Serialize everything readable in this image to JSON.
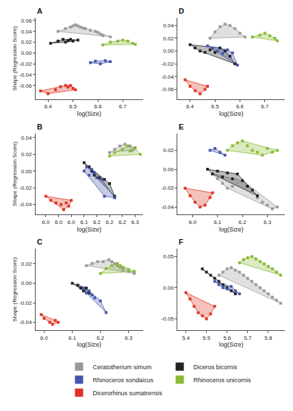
{
  "chart_data": [
    {
      "type": "scatter",
      "title": "A",
      "x_label": "log(Size)",
      "y_label": "Shape (Regression Score)",
      "grid": false,
      "xlim": [
        6.35,
        6.78
      ],
      "ylim": [
        -0.085,
        0.065
      ],
      "xticks": [
        6.4,
        6.5,
        6.6,
        6.7
      ],
      "yticks": [
        -0.06,
        -0.04,
        -0.02,
        {
          "value": 0.0,
          "label": "0.00"
        },
        0.02,
        0.04,
        0.06
      ],
      "series": [
        {
          "color": "#999999",
          "marker": "square",
          "x": [
            6.44,
            6.47,
            6.49,
            6.5,
            6.51,
            6.52,
            6.53,
            6.54,
            6.55,
            6.57,
            6.59,
            6.6,
            6.61,
            6.62,
            6.65
          ],
          "values": [
            0.04,
            0.045,
            0.048,
            0.05,
            0.052,
            0.05,
            0.048,
            0.046,
            0.045,
            0.042,
            0.04,
            0.038,
            0.035,
            0.032,
            0.03
          ]
        },
        {
          "color": "#222222",
          "marker": "square",
          "x": [
            6.41,
            6.44,
            6.46,
            6.47,
            6.48,
            6.49,
            6.5,
            6.52
          ],
          "values": [
            0.018,
            0.022,
            0.025,
            0.02,
            0.023,
            0.025,
            0.022,
            0.024
          ]
        },
        {
          "color": "#4455aa",
          "marker": "square",
          "x": [
            6.57,
            6.59,
            6.61,
            6.63,
            6.65
          ],
          "values": [
            -0.018,
            -0.015,
            -0.02,
            -0.014,
            -0.016
          ]
        },
        {
          "color": "#88bb33",
          "marker": "square",
          "x": [
            6.62,
            6.65,
            6.68,
            6.7,
            6.72,
            6.74,
            6.75
          ],
          "values": [
            0.015,
            0.02,
            0.022,
            0.024,
            0.022,
            0.018,
            0.016
          ]
        },
        {
          "color": "#dd3322",
          "marker": "square",
          "x": [
            6.37,
            6.4,
            6.43,
            6.45,
            6.47,
            6.48,
            6.49,
            6.5,
            6.51
          ],
          "values": [
            -0.07,
            -0.075,
            -0.068,
            -0.062,
            -0.06,
            -0.063,
            -0.06,
            -0.065,
            -0.068
          ]
        }
      ]
    },
    {
      "type": "scatter",
      "title": "D",
      "x_label": "log(Size)",
      "grid": false,
      "xlim": [
        6.35,
        6.78
      ],
      "ylim": [
        -0.075,
        0.052
      ],
      "xticks": [
        6.4,
        6.5,
        6.6,
        6.7
      ],
      "yticks": [
        -0.06,
        -0.04,
        -0.02,
        {
          "value": 0.0,
          "label": "0.00"
        },
        0.02,
        0.04
      ],
      "series": [
        {
          "color": "#999999",
          "marker": "square",
          "x": [
            6.48,
            6.5,
            6.52,
            6.54,
            6.56,
            6.58,
            6.6,
            6.62
          ],
          "values": [
            0.02,
            0.03,
            0.038,
            0.042,
            0.04,
            0.035,
            0.028,
            0.022
          ]
        },
        {
          "color": "#222222",
          "marker": "square",
          "x": [
            6.4,
            6.42,
            6.44,
            6.46,
            6.48,
            6.5,
            6.52,
            6.54,
            6.56,
            6.58
          ],
          "values": [
            0.01,
            0.005,
            0.0,
            -0.002,
            0.002,
            -0.002,
            0.005,
            0.0,
            -0.008,
            -0.02
          ]
        },
        {
          "color": "#4455aa",
          "marker": "square",
          "x": [
            6.47,
            6.49,
            6.51,
            6.53,
            6.55,
            6.57,
            6.59
          ],
          "values": [
            0.008,
            0.004,
            0.0,
            -0.004,
            0.002,
            -0.003,
            -0.022
          ]
        },
        {
          "color": "#88bb33",
          "marker": "square",
          "x": [
            6.65,
            6.68,
            6.7,
            6.72,
            6.74,
            6.75
          ],
          "values": [
            0.022,
            0.025,
            0.028,
            0.024,
            0.02,
            0.016
          ]
        },
        {
          "color": "#dd3322",
          "marker": "square",
          "x": [
            6.38,
            6.4,
            6.42,
            6.44,
            6.46,
            6.47
          ],
          "values": [
            -0.045,
            -0.055,
            -0.062,
            -0.067,
            -0.06,
            -0.055
          ]
        }
      ]
    },
    {
      "type": "scatter",
      "title": "B",
      "x_label": "log(Size)",
      "y_label": "Shape (Regression Score)",
      "grid": false,
      "xlim": [
        5.91,
        6.33
      ],
      "ylim": [
        -0.052,
        0.045
      ],
      "xticks": [
        {
          "value": 5.95,
          "label": "6.0"
        },
        {
          "value": 6.0,
          "label": "6.0"
        },
        {
          "value": 6.05,
          "label": "6.0"
        },
        6.1,
        {
          "value": 6.15,
          "label": "6.2"
        },
        6.2,
        {
          "value": 6.25,
          "label": "6.2"
        },
        6.3
      ],
      "yticks": [
        -0.04,
        -0.02,
        {
          "value": 0.0,
          "label": "0.00"
        },
        0.02,
        0.04
      ],
      "series": [
        {
          "color": "#999999",
          "marker": "square",
          "x": [
            6.2,
            6.22,
            6.24,
            6.26,
            6.28,
            6.29,
            6.3
          ],
          "values": [
            0.022,
            0.026,
            0.03,
            0.032,
            0.03,
            0.025,
            0.028
          ]
        },
        {
          "color": "#222222",
          "marker": "square",
          "x": [
            6.1,
            6.12,
            6.13,
            6.14,
            6.16,
            6.18,
            6.2,
            6.22
          ],
          "values": [
            0.01,
            0.005,
            0.0,
            -0.005,
            -0.008,
            -0.01,
            -0.015,
            -0.03
          ]
        },
        {
          "color": "#4455aa",
          "marker": "square",
          "x": [
            6.1,
            6.11,
            6.12,
            6.13,
            6.14,
            6.15,
            6.17,
            6.18,
            6.22
          ],
          "values": [
            0.0,
            0.005,
            -0.005,
            0.002,
            -0.002,
            -0.008,
            -0.01,
            -0.03,
            -0.032
          ]
        },
        {
          "color": "#88bb33",
          "marker": "square",
          "x": [
            6.2,
            6.22,
            6.25,
            6.27,
            6.28,
            6.3,
            6.32
          ],
          "values": [
            0.018,
            0.022,
            0.026,
            0.03,
            0.024,
            0.027,
            0.02
          ]
        },
        {
          "color": "#dd3322",
          "marker": "square",
          "x": [
            5.95,
            5.97,
            5.99,
            6.01,
            6.03,
            6.05,
            6.04,
            6.02
          ],
          "values": [
            -0.03,
            -0.035,
            -0.038,
            -0.04,
            -0.038,
            -0.035,
            -0.042,
            -0.046
          ]
        }
      ]
    },
    {
      "type": "scatter",
      "title": "E",
      "x_label": "log(Size)",
      "grid": false,
      "xlim": [
        5.94,
        6.37
      ],
      "ylim": [
        -0.048,
        0.038
      ],
      "xticks": [
        {
          "value": 6.0,
          "label": "6.0"
        },
        6.1,
        6.2,
        6.3
      ],
      "yticks": [
        -0.04,
        -0.02,
        {
          "value": 0.0,
          "label": "0.00"
        },
        0.02
      ],
      "series": [
        {
          "color": "#999999",
          "marker": "square",
          "x": [
            6.08,
            6.1,
            6.12,
            6.14,
            6.16,
            6.18,
            6.2,
            6.22,
            6.24,
            6.26,
            6.28,
            6.3,
            6.32,
            6.34
          ],
          "values": [
            -0.005,
            -0.01,
            -0.015,
            -0.02,
            -0.018,
            -0.015,
            -0.012,
            -0.018,
            -0.025,
            -0.03,
            -0.035,
            -0.038,
            -0.042,
            -0.04
          ]
        },
        {
          "color": "#222222",
          "marker": "square",
          "x": [
            6.06,
            6.08,
            6.1,
            6.12,
            6.14,
            6.16,
            6.18,
            6.2,
            6.22,
            6.24,
            6.26
          ],
          "values": [
            0.0,
            -0.005,
            -0.002,
            -0.008,
            -0.004,
            -0.01,
            -0.005,
            -0.012,
            -0.018,
            -0.022,
            -0.028
          ]
        },
        {
          "color": "#4455aa",
          "marker": "square",
          "x": [
            6.07,
            6.09,
            6.11,
            6.13
          ],
          "values": [
            0.02,
            0.022,
            0.018,
            0.015
          ]
        },
        {
          "color": "#88bb33",
          "marker": "square",
          "x": [
            6.14,
            6.16,
            6.18,
            6.2,
            6.22,
            6.24,
            6.26,
            6.28,
            6.3,
            6.32,
            6.34
          ],
          "values": [
            0.02,
            0.025,
            0.028,
            0.03,
            0.025,
            0.02,
            0.018,
            0.015,
            0.022,
            0.018,
            0.02
          ]
        },
        {
          "color": "#dd3322",
          "marker": "square",
          "x": [
            5.97,
            5.99,
            6.01,
            6.03,
            6.05,
            6.07,
            6.08
          ],
          "values": [
            -0.02,
            -0.028,
            -0.035,
            -0.04,
            -0.038,
            -0.03,
            -0.025
          ]
        }
      ]
    },
    {
      "type": "scatter",
      "title": "C",
      "x_label": "log(Size)",
      "y_label": "Shape (Regression Score)",
      "grid": false,
      "xlim": [
        5.97,
        6.35
      ],
      "ylim": [
        -0.048,
        0.035
      ],
      "xticks": [
        {
          "value": 6.0,
          "label": "6.0"
        },
        6.1,
        6.2,
        6.3
      ],
      "yticks": [
        -0.04,
        -0.02,
        {
          "value": 0.0,
          "label": "0.00"
        },
        0.02
      ],
      "series": [
        {
          "color": "#999999",
          "marker": "square",
          "x": [
            6.15,
            6.17,
            6.19,
            6.21,
            6.23,
            6.24,
            6.25,
            6.26,
            6.27,
            6.28,
            6.3,
            6.32
          ],
          "values": [
            0.018,
            0.02,
            0.022,
            0.022,
            0.024,
            0.022,
            0.02,
            0.018,
            0.016,
            0.014,
            0.012,
            0.01
          ]
        },
        {
          "color": "#222222",
          "marker": "square",
          "x": [
            6.1,
            6.12,
            6.13,
            6.14,
            6.15,
            6.16
          ],
          "values": [
            0.0,
            -0.002,
            -0.005,
            -0.008,
            -0.005,
            -0.01
          ]
        },
        {
          "color": "#4455aa",
          "marker": "square",
          "x": [
            6.14,
            6.15,
            6.16,
            6.17,
            6.18,
            6.2,
            6.22
          ],
          "values": [
            -0.005,
            -0.01,
            -0.008,
            -0.012,
            -0.015,
            -0.018,
            -0.03
          ]
        },
        {
          "color": "#88bb33",
          "marker": "square",
          "x": [
            6.2,
            6.22,
            6.24,
            6.26,
            6.27,
            6.28,
            6.3,
            6.32
          ],
          "values": [
            0.01,
            0.015,
            0.018,
            0.02,
            0.018,
            0.016,
            0.014,
            0.012
          ]
        },
        {
          "color": "#dd3322",
          "marker": "square",
          "x": [
            5.99,
            6.0,
            6.02,
            6.04,
            6.05,
            6.03
          ],
          "values": [
            -0.032,
            -0.036,
            -0.04,
            -0.038,
            -0.04,
            -0.042
          ]
        }
      ]
    },
    {
      "type": "scatter",
      "title": "F",
      "x_label": "log(Size)",
      "grid": false,
      "legend": "bottom",
      "xlim": [
        5.36,
        5.88
      ],
      "ylim": [
        -0.068,
        0.062
      ],
      "xticks": [
        5.4,
        5.5,
        5.6,
        5.7,
        5.8
      ],
      "yticks": [
        -0.05,
        {
          "value": 0.0,
          "label": "0.00"
        },
        0.05
      ],
      "series": [
        {
          "name": "Ceratotherium simum",
          "color": "#999999",
          "marker": "square",
          "x": [
            5.56,
            5.58,
            5.6,
            5.62,
            5.64,
            5.66,
            5.68,
            5.7,
            5.72,
            5.74,
            5.76,
            5.78,
            5.8,
            5.82,
            5.84,
            5.86
          ],
          "values": [
            0.02,
            0.025,
            0.03,
            0.032,
            0.028,
            0.025,
            0.02,
            0.015,
            0.01,
            0.005,
            0.0,
            -0.005,
            -0.01,
            -0.015,
            -0.02,
            -0.025
          ]
        },
        {
          "name": "Diceros bicornis",
          "color": "#222222",
          "marker": "square",
          "x": [
            5.48,
            5.5,
            5.52,
            5.54,
            5.56,
            5.58,
            5.6,
            5.62,
            5.64
          ],
          "values": [
            0.03,
            0.025,
            0.02,
            0.015,
            0.01,
            0.005,
            0.0,
            -0.005,
            -0.01
          ]
        },
        {
          "name": "Rhinoceros sondaicus",
          "color": "#4455aa",
          "marker": "square",
          "x": [
            5.54,
            5.56,
            5.58,
            5.6,
            5.62,
            5.64,
            5.66
          ],
          "values": [
            0.01,
            0.005,
            0.0,
            -0.002,
            0.002,
            -0.005,
            -0.01
          ]
        },
        {
          "name": "Rhinoceros unicornis",
          "color": "#88bb33",
          "marker": "square",
          "x": [
            5.66,
            5.68,
            5.7,
            5.72,
            5.74,
            5.76,
            5.78,
            5.8,
            5.82,
            5.84,
            5.86
          ],
          "values": [
            0.04,
            0.045,
            0.048,
            0.05,
            0.046,
            0.042,
            0.038,
            0.034,
            0.03,
            0.025,
            0.02
          ]
        },
        {
          "name": "Dicerorhinus sumatrensis",
          "color": "#dd3322",
          "marker": "square",
          "x": [
            5.4,
            5.42,
            5.44,
            5.46,
            5.48,
            5.5,
            5.52,
            5.54
          ],
          "values": [
            -0.008,
            -0.018,
            -0.03,
            -0.04,
            -0.045,
            -0.05,
            -0.042,
            -0.03
          ]
        }
      ]
    }
  ]
}
